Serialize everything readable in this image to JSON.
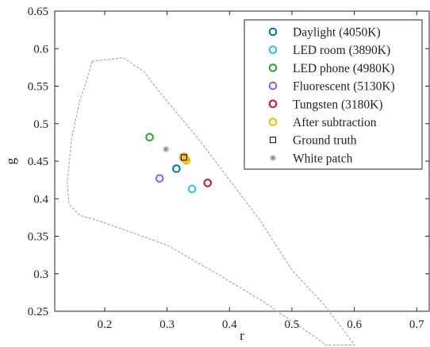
{
  "chart_data": {
    "type": "scatter",
    "xlabel": "r",
    "ylabel": "g",
    "xlim": [
      0.12,
      0.72
    ],
    "ylim": [
      0.25,
      0.65
    ],
    "x_ticks": [
      0.2,
      0.3,
      0.4,
      0.5,
      0.6,
      0.7
    ],
    "y_ticks": [
      0.25,
      0.3,
      0.35,
      0.4,
      0.45,
      0.5,
      0.55,
      0.6,
      0.65
    ],
    "x_tick_labels": [
      "0.2",
      "0.3",
      "0.4",
      "0.5",
      "0.6",
      "0.7"
    ],
    "y_tick_labels": [
      "0.25",
      "0.3",
      "0.35",
      "0.4",
      "0.45",
      "0.5",
      "0.55",
      "0.6",
      "0.65"
    ],
    "grid": false,
    "legend_position": "top-right",
    "gamut_boundary": {
      "style": "dashed",
      "color": "#999999",
      "points": [
        [
          0.18,
          0.583
        ],
        [
          0.23,
          0.588
        ],
        [
          0.262,
          0.57
        ],
        [
          0.29,
          0.54
        ],
        [
          0.35,
          0.48
        ],
        [
          0.4,
          0.425
        ],
        [
          0.45,
          0.37
        ],
        [
          0.5,
          0.305
        ],
        [
          0.55,
          0.26
        ],
        [
          0.58,
          0.228
        ],
        [
          0.6,
          0.205
        ],
        [
          0.555,
          0.205
        ],
        [
          0.53,
          0.22
        ],
        [
          0.45,
          0.265
        ],
        [
          0.38,
          0.3
        ],
        [
          0.3,
          0.338
        ],
        [
          0.2,
          0.368
        ],
        [
          0.16,
          0.378
        ],
        [
          0.143,
          0.392
        ],
        [
          0.14,
          0.42
        ],
        [
          0.147,
          0.48
        ],
        [
          0.16,
          0.53
        ],
        [
          0.175,
          0.568
        ],
        [
          0.18,
          0.583
        ]
      ]
    },
    "series": [
      {
        "name": "Daylight (4050K)",
        "marker": "circle",
        "color": "#0072BD",
        "points": [
          [
            0.315,
            0.44
          ]
        ]
      },
      {
        "name": "LED room (3890K)",
        "marker": "circle",
        "color": "#2FBEEF",
        "points": [
          [
            0.34,
            0.413
          ]
        ]
      },
      {
        "name": "LED phone (4980K)",
        "marker": "circle",
        "color": "#2CA02C",
        "points": [
          [
            0.272,
            0.482
          ]
        ]
      },
      {
        "name": "Fluorescent (5130K)",
        "marker": "circle",
        "color": "#8B5CF6",
        "points": [
          [
            0.288,
            0.427
          ]
        ]
      },
      {
        "name": "Tungsten (3180K)",
        "marker": "circle",
        "color": "#C4161C",
        "points": [
          [
            0.365,
            0.421
          ]
        ]
      },
      {
        "name": "After subtraction",
        "marker": "circle",
        "color": "#F5B700",
        "points": [
          [
            0.327,
            0.456
          ],
          [
            0.329,
            0.453
          ],
          [
            0.331,
            0.451
          ],
          [
            0.326,
            0.455
          ]
        ]
      },
      {
        "name": "Ground truth",
        "marker": "square",
        "color": "#000000",
        "points": [
          [
            0.327,
            0.455
          ]
        ]
      },
      {
        "name": "White patch",
        "marker": "asterisk",
        "color": "#808080",
        "points": [
          [
            0.298,
            0.466
          ]
        ]
      }
    ]
  }
}
